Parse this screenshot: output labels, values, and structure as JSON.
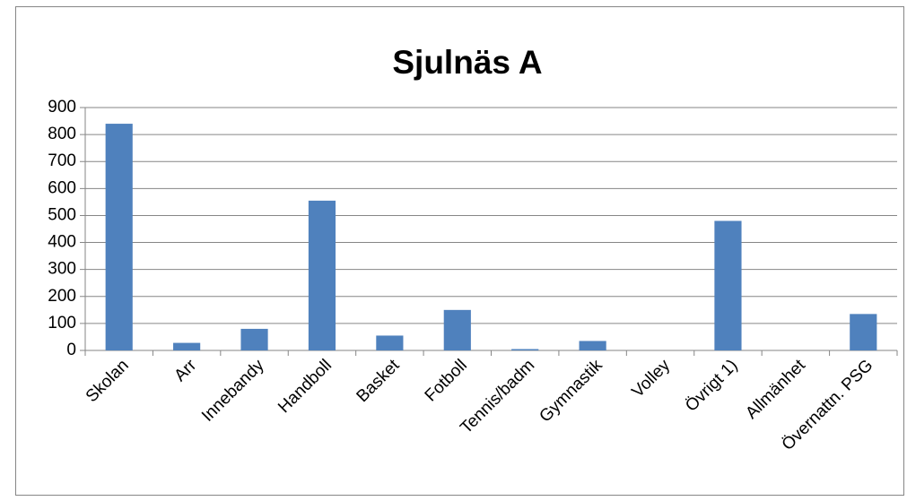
{
  "chart_data": {
    "type": "bar",
    "title": "Sjulnäs A",
    "categories": [
      "Skolan",
      "Arr",
      "Innebandy",
      "Handboll",
      "Basket",
      "Fotboll",
      "Tennis/badm",
      "Gymnastik",
      "Volley",
      "Övrigt 1)",
      "Allmänhet",
      "Övernattn. PSG"
    ],
    "values": [
      840,
      28,
      80,
      555,
      55,
      150,
      5,
      35,
      0,
      480,
      0,
      135
    ],
    "color": "#4f81bd",
    "ylim": [
      0,
      900
    ],
    "yticks": [
      0,
      100,
      200,
      300,
      400,
      500,
      600,
      700,
      800,
      900
    ],
    "grid": true
  }
}
